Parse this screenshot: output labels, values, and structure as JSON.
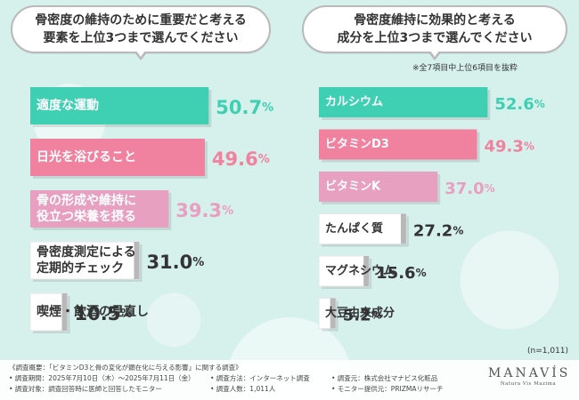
{
  "left_title": {
    "line1": "骨密度の維持のために重要だと考える",
    "line2": "要素を上位3つまで選んでください"
  },
  "right_title": {
    "line1": "骨密度維持に効果的と考える",
    "line2": "成分を上位3つまで選んでください"
  },
  "right_note": "※全7項目中上位6項目を抜粋",
  "sample_size": "(n=1,011)",
  "colors": {
    "teal": "#3fcfb3",
    "pink": "#f0829f",
    "lightpink": "#e8a0c0",
    "gray": "#b8b8b8",
    "value_teal": "#3fcfb3",
    "value_pink": "#f0829f",
    "value_lightpink": "#e8a0c0",
    "value_gray": "#333333"
  },
  "chart_data": [
    {
      "type": "bar",
      "title": "骨密度の維持のために重要だと考える要素を上位3つまで選んでください",
      "unit": "%",
      "categories": [
        "適度な運動",
        "日光を浴びること",
        "骨の形成や維持に役立つ栄養を摂る",
        "骨密度測定による定期的チェック",
        "喫煙・飲酒の見直し"
      ],
      "labels": [
        [
          "適度な運動"
        ],
        [
          "日光を浴びること"
        ],
        [
          "骨の形成や維持に",
          "役立つ栄養を摂る"
        ],
        [
          "骨密度測定による",
          "定期的チェック"
        ],
        [
          "喫煙・飲酒の見直し"
        ]
      ],
      "values": [
        50.7,
        49.6,
        39.3,
        31.0,
        10.5
      ],
      "value_labels": [
        "50.7",
        "49.6",
        "39.3",
        "31.0",
        "10.5"
      ],
      "bar_colors": [
        "teal",
        "pink",
        "lightpink",
        "gray",
        "gray"
      ]
    },
    {
      "type": "bar",
      "title": "骨密度維持に効果的と考える成分を上位3つまで選んでください",
      "unit": "%",
      "categories": [
        "カルシウム",
        "ビタミンD3",
        "ビタミンK",
        "たんぱく質",
        "マグネシウム",
        "大豆由来成分"
      ],
      "labels": [
        [
          "カルシウム"
        ],
        [
          "ビタミンD3"
        ],
        [
          "ビタミンK"
        ],
        [
          "たんぱく質"
        ],
        [
          "マグネシウム"
        ],
        [
          "大豆由来成分"
        ]
      ],
      "values": [
        52.6,
        49.3,
        37.0,
        27.2,
        15.6,
        5.2
      ],
      "value_labels": [
        "52.6",
        "49.3",
        "37.0",
        "27.2",
        "15.6",
        "5.2"
      ],
      "bar_colors": [
        "teal",
        "pink",
        "lightpink",
        "gray",
        "gray",
        "gray"
      ]
    }
  ],
  "footer": {
    "l1": "《調査概要：「ビタミンD3と骨の変化が顕在化に与える影響」に関する調査》",
    "c1a": "• 調査期間：2025年7月10日（木）～2025年7月11日（金）",
    "c1b": "• 調査対象：調査回答時に医師と回答したモニター",
    "c2a": "• 調査方法：インターネット調査",
    "c2b": "• 調査人数：1,011人",
    "c3a": "• 調査元：株式会社マナビス化粧品",
    "c3b": "• モニター提供元：PRIZMAリサーチ",
    "logo": "MANAVÍS",
    "logo_sub": "Natura Vis Mazima"
  }
}
